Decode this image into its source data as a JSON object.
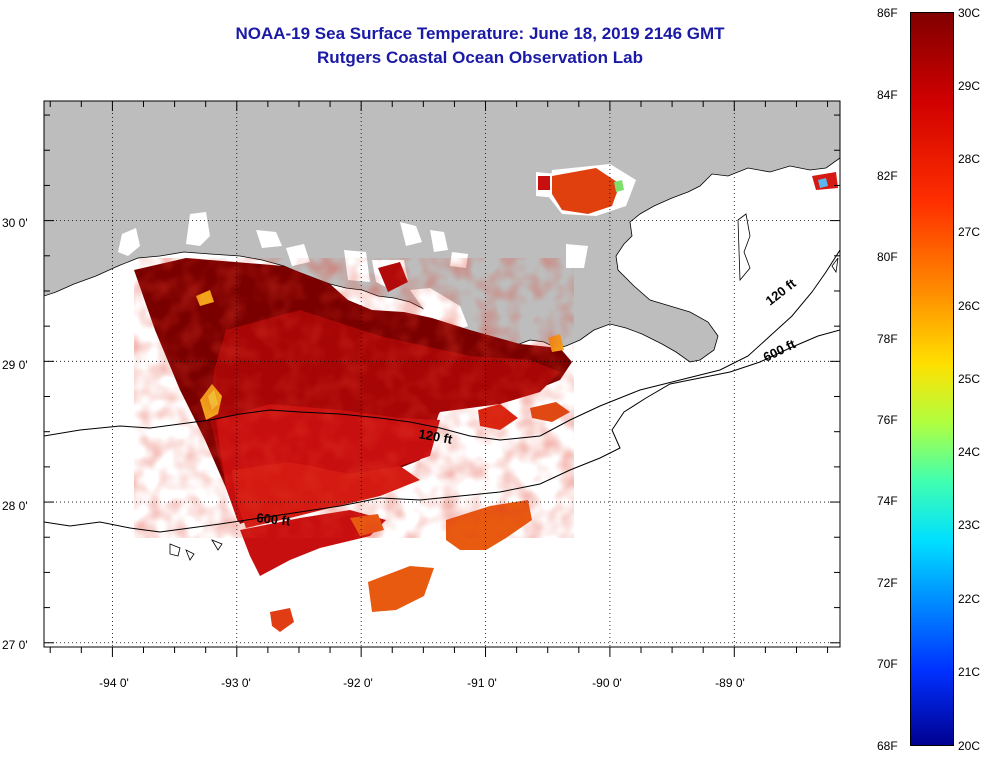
{
  "title": {
    "line1": "NOAA-19 Sea Surface Temperature:  June 18, 2019 2146 GMT",
    "line2": "Rutgers Coastal Ocean Observation Lab"
  },
  "map": {
    "lon_range": [
      -94.55,
      -88.15
    ],
    "lat_range": [
      26.97,
      30.85
    ],
    "lat_ticks": [
      {
        "value": 30,
        "label": "30 0'"
      },
      {
        "value": 29,
        "label": "29 0'"
      },
      {
        "value": 28,
        "label": "28 0'"
      },
      {
        "value": 27,
        "label": "27 0'"
      }
    ],
    "lon_ticks": [
      {
        "value": -94,
        "label": "-94 0'"
      },
      {
        "value": -93,
        "label": "-93 0'"
      },
      {
        "value": -92,
        "label": "-92 0'"
      },
      {
        "value": -91,
        "label": "-91 0'"
      },
      {
        "value": -90,
        "label": "-90 0'"
      },
      {
        "value": -89,
        "label": "-89 0'"
      }
    ],
    "grid": "dotted",
    "contours": [
      {
        "label": "120 ft",
        "label_at": [
          -90.95,
          28.52
        ]
      },
      {
        "label": "120 ft",
        "label_at": [
          -88.65,
          29.62
        ]
      },
      {
        "label": "600 ft",
        "label_at": [
          -92.7,
          27.88
        ]
      },
      {
        "label": "600 ft",
        "label_at": [
          -88.6,
          29.18
        ]
      }
    ],
    "colors": {
      "land": "#bdbdbd",
      "hot": "#7a0000",
      "warm": "#c80f0f",
      "orange": "#e85a10",
      "yellow": "#f6e43c"
    }
  },
  "colorbar": {
    "fahrenheit": [
      "86F",
      "84F",
      "82F",
      "80F",
      "78F",
      "76F",
      "74F",
      "72F",
      "70F",
      "68F"
    ],
    "celsius": [
      "30C",
      "29C",
      "28C",
      "27C",
      "26C",
      "25C",
      "24C",
      "23C",
      "22C",
      "21C",
      "20C"
    ],
    "f_range": [
      68,
      86
    ],
    "c_range": [
      20,
      30
    ]
  }
}
